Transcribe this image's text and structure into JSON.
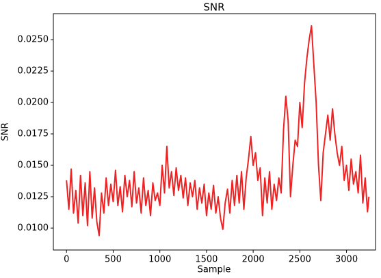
{
  "chart_data": {
    "type": "line",
    "title": "SNR",
    "xlabel": "Sample",
    "ylabel": "SNR",
    "x": [
      0,
      25,
      50,
      75,
      100,
      125,
      150,
      175,
      200,
      225,
      250,
      275,
      300,
      325,
      350,
      375,
      400,
      425,
      450,
      475,
      500,
      525,
      550,
      575,
      600,
      625,
      650,
      675,
      700,
      725,
      750,
      775,
      800,
      825,
      850,
      875,
      900,
      925,
      950,
      975,
      1000,
      1025,
      1050,
      1075,
      1100,
      1125,
      1150,
      1175,
      1200,
      1225,
      1250,
      1275,
      1300,
      1325,
      1350,
      1375,
      1400,
      1425,
      1450,
      1475,
      1500,
      1525,
      1550,
      1575,
      1600,
      1625,
      1650,
      1675,
      1700,
      1725,
      1750,
      1775,
      1800,
      1825,
      1850,
      1875,
      1900,
      1925,
      1950,
      1975,
      2000,
      2025,
      2050,
      2075,
      2100,
      2125,
      2150,
      2175,
      2200,
      2225,
      2250,
      2275,
      2300,
      2325,
      2350,
      2375,
      2400,
      2425,
      2450,
      2475,
      2500,
      2525,
      2550,
      2575,
      2600,
      2625,
      2650,
      2675,
      2700,
      2725,
      2750,
      2775,
      2800,
      2825,
      2850,
      2875,
      2900,
      2925,
      2950,
      2975,
      3000,
      3025,
      3050,
      3075,
      3100,
      3125,
      3150,
      3175,
      3200,
      3225,
      3240
    ],
    "series": [
      {
        "name": "SNR",
        "color": "#ee2222",
        "values": [
          0.0138,
          0.0115,
          0.0147,
          0.0112,
          0.013,
          0.0104,
          0.0142,
          0.011,
          0.0136,
          0.0102,
          0.0145,
          0.0108,
          0.0132,
          0.0105,
          0.0094,
          0.0128,
          0.0112,
          0.014,
          0.0118,
          0.0135,
          0.0121,
          0.0146,
          0.0118,
          0.0133,
          0.0113,
          0.0142,
          0.0125,
          0.0138,
          0.0117,
          0.0145,
          0.012,
          0.0132,
          0.0112,
          0.014,
          0.0118,
          0.013,
          0.011,
          0.0136,
          0.0122,
          0.0128,
          0.0118,
          0.015,
          0.0128,
          0.0165,
          0.0132,
          0.0145,
          0.0126,
          0.0148,
          0.013,
          0.0142,
          0.0124,
          0.014,
          0.0118,
          0.0136,
          0.0125,
          0.0138,
          0.0115,
          0.0132,
          0.012,
          0.0135,
          0.011,
          0.0128,
          0.0115,
          0.0134,
          0.0112,
          0.0125,
          0.0108,
          0.0099,
          0.012,
          0.0131,
          0.0112,
          0.0138,
          0.0118,
          0.0142,
          0.012,
          0.0145,
          0.0115,
          0.014,
          0.0155,
          0.0173,
          0.015,
          0.016,
          0.0138,
          0.0148,
          0.011,
          0.014,
          0.012,
          0.0145,
          0.0115,
          0.0135,
          0.0122,
          0.014,
          0.0128,
          0.0178,
          0.0205,
          0.0185,
          0.0125,
          0.015,
          0.017,
          0.0165,
          0.02,
          0.018,
          0.0215,
          0.0235,
          0.025,
          0.0261,
          0.023,
          0.02,
          0.015,
          0.0122,
          0.016,
          0.0175,
          0.019,
          0.017,
          0.0195,
          0.0175,
          0.016,
          0.015,
          0.0165,
          0.0138,
          0.015,
          0.013,
          0.0155,
          0.0135,
          0.0145,
          0.0128,
          0.0158,
          0.012,
          0.014,
          0.0113,
          0.0125
        ]
      }
    ],
    "xlim": [
      -141,
      3311
    ],
    "ylim": [
      0.00826,
      0.02707
    ],
    "xticks": [
      0,
      500,
      1000,
      1500,
      2000,
      2500,
      3000
    ],
    "yticks": [
      {
        "value": 0.01,
        "label": "0.0100"
      },
      0.0125,
      {
        "value": 0.015,
        "label": "0.0150"
      },
      0.0175,
      {
        "value": 0.02,
        "label": "0.0200"
      },
      0.0225,
      {
        "value": 0.025,
        "label": "0.0250"
      }
    ]
  }
}
